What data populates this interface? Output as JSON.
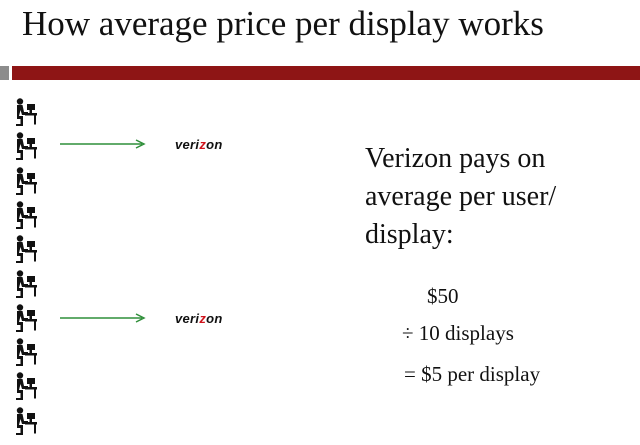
{
  "title": "How average price per display works",
  "people_icon": "person-at-computer-icon",
  "people_count": 10,
  "logo": {
    "text_before": "veri",
    "text_z": "z",
    "text_after": "on",
    "accent_color": "#d0141c"
  },
  "explanation": {
    "line1": "Verizon pays on",
    "line2": "average per user/",
    "line3": "display:"
  },
  "calculation": {
    "total": "$50",
    "divisor": "÷ 10 displays",
    "result": "= $5 per display"
  },
  "colors": {
    "accent_bar": "#8e1515",
    "arrow": "#2f8f3a"
  }
}
